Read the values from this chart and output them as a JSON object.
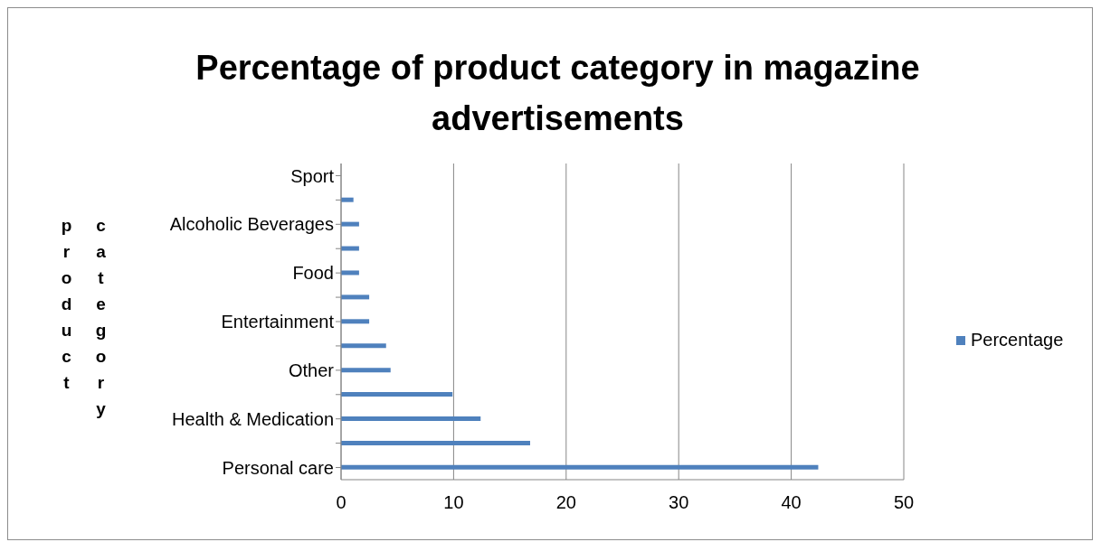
{
  "chart_data": {
    "type": "bar",
    "orientation": "horizontal",
    "title": "Percentage of product category in magazine advertisements",
    "ylabel": "product category",
    "categories": [
      "Sport",
      null,
      "Alcoholic Beverages",
      null,
      "Food",
      null,
      "Entertainment",
      null,
      "Other ",
      null,
      "Health & Medication",
      null,
      "Personal care"
    ],
    "series": [
      {
        "name": "Percentage",
        "color": "#4f81bd",
        "values": [
          null,
          1.1,
          1.6,
          1.6,
          1.6,
          2.5,
          2.5,
          4,
          4.4,
          9.9,
          12.4,
          16.8,
          42.4
        ]
      }
    ],
    "xlim": [
      0,
      50
    ],
    "xticks": [
      0,
      10,
      20,
      30,
      40,
      50
    ],
    "grid": "x",
    "legend": "right"
  }
}
